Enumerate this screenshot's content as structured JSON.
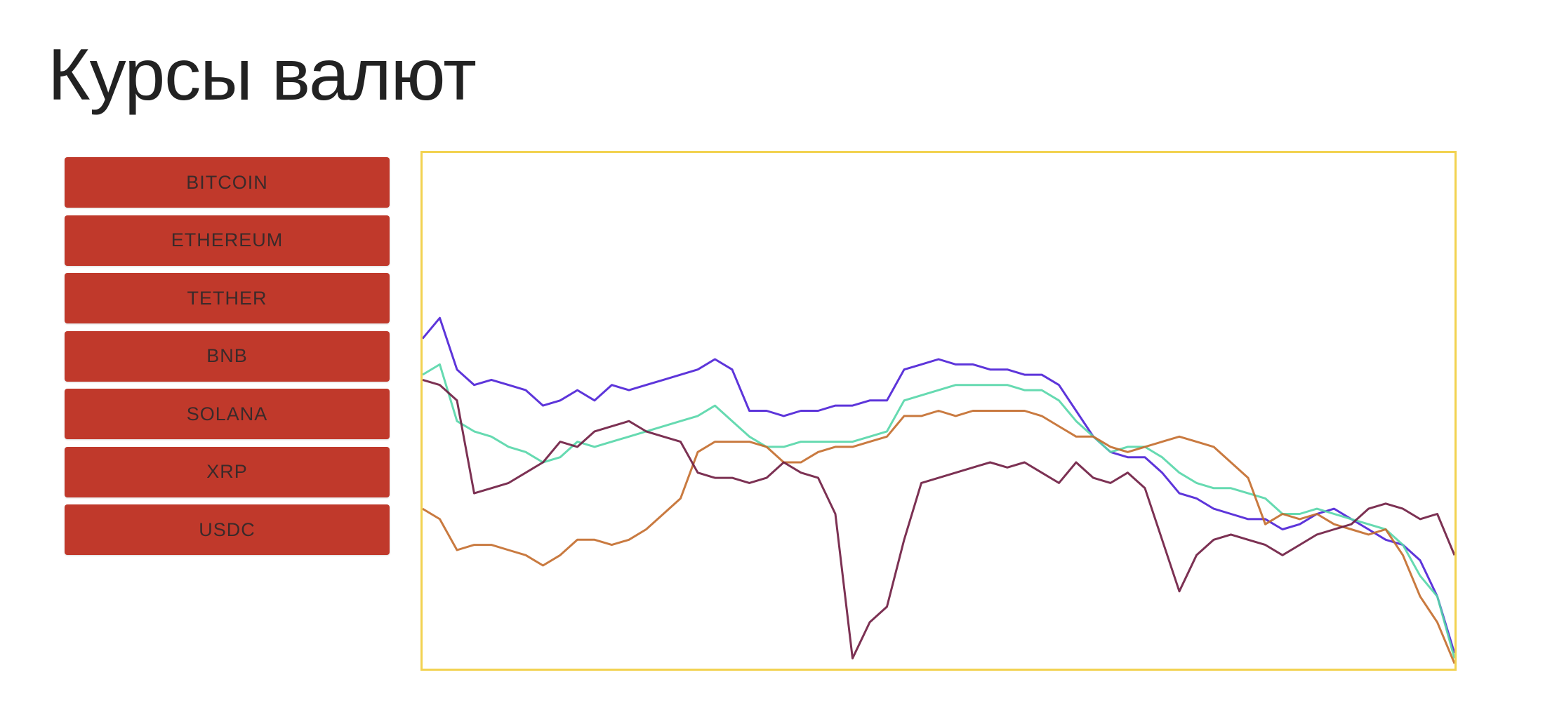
{
  "header": {
    "title": "Курсы валют"
  },
  "currencies": [
    {
      "label": "BITCOIN"
    },
    {
      "label": "ETHEREUM"
    },
    {
      "label": "TETHER"
    },
    {
      "label": "BNB"
    },
    {
      "label": "SOLANA"
    },
    {
      "label": "XRP"
    },
    {
      "label": "USDC"
    }
  ],
  "colors": {
    "button_bg": "#c0392b",
    "frame": "#f2d250"
  },
  "chart_data": {
    "type": "line",
    "grid": false,
    "x": [
      0,
      1,
      2,
      3,
      4,
      5,
      6,
      7,
      8,
      9,
      10,
      11,
      12,
      13,
      14,
      15,
      16,
      17,
      18,
      19,
      20,
      21,
      22,
      23,
      24,
      25,
      26,
      27,
      28,
      29,
      30,
      31,
      32,
      33,
      34,
      35,
      36,
      37,
      38,
      39,
      40,
      41,
      42,
      43,
      44,
      45,
      46,
      47,
      48,
      49,
      50,
      51,
      52,
      53,
      54,
      55,
      56,
      57,
      58,
      59,
      60
    ],
    "ylim": [
      0,
      100
    ],
    "series": [
      {
        "color": "#4b1fd6",
        "values": [
          64,
          68,
          58,
          55,
          56,
          55,
          54,
          51,
          52,
          54,
          52,
          55,
          54,
          55,
          56,
          57,
          58,
          60,
          58,
          50,
          50,
          49,
          50,
          50,
          51,
          51,
          52,
          52,
          58,
          59,
          60,
          59,
          59,
          58,
          58,
          57,
          57,
          55,
          50,
          45,
          42,
          41,
          41,
          38,
          34,
          33,
          31,
          30,
          29,
          29,
          27,
          28,
          30,
          31,
          29,
          27,
          25,
          24,
          21,
          14,
          3
        ]
      },
      {
        "color": "#55d6a8",
        "values": [
          57,
          59,
          48,
          46,
          45,
          43,
          42,
          40,
          41,
          44,
          43,
          44,
          45,
          46,
          47,
          48,
          49,
          51,
          48,
          45,
          43,
          43,
          44,
          44,
          44,
          44,
          45,
          46,
          52,
          53,
          54,
          55,
          55,
          55,
          55,
          54,
          54,
          52,
          48,
          45,
          42,
          43,
          43,
          41,
          38,
          36,
          35,
          35,
          34,
          33,
          30,
          30,
          31,
          30,
          29,
          28,
          27,
          24,
          18,
          14,
          2
        ]
      },
      {
        "color": "#c36b2b",
        "values": [
          31,
          29,
          23,
          24,
          24,
          23,
          22,
          20,
          22,
          25,
          25,
          24,
          25,
          27,
          30,
          33,
          42,
          44,
          44,
          44,
          43,
          40,
          40,
          42,
          43,
          43,
          44,
          45,
          49,
          49,
          50,
          49,
          50,
          50,
          50,
          50,
          49,
          47,
          45,
          45,
          43,
          42,
          43,
          44,
          45,
          44,
          43,
          40,
          37,
          28,
          30,
          29,
          30,
          28,
          27,
          26,
          27,
          22,
          14,
          9,
          1
        ]
      },
      {
        "color": "#6e1b40",
        "values": [
          56,
          55,
          52,
          34,
          35,
          36,
          38,
          40,
          44,
          43,
          46,
          47,
          48,
          46,
          45,
          44,
          38,
          37,
          37,
          36,
          37,
          40,
          38,
          37,
          30,
          2,
          9,
          12,
          25,
          36,
          37,
          38,
          39,
          40,
          39,
          40,
          38,
          36,
          40,
          37,
          36,
          38,
          35,
          25,
          15,
          22,
          25,
          26,
          25,
          24,
          22,
          24,
          26,
          27,
          28,
          31,
          32,
          31,
          29,
          30,
          22
        ]
      }
    ]
  }
}
